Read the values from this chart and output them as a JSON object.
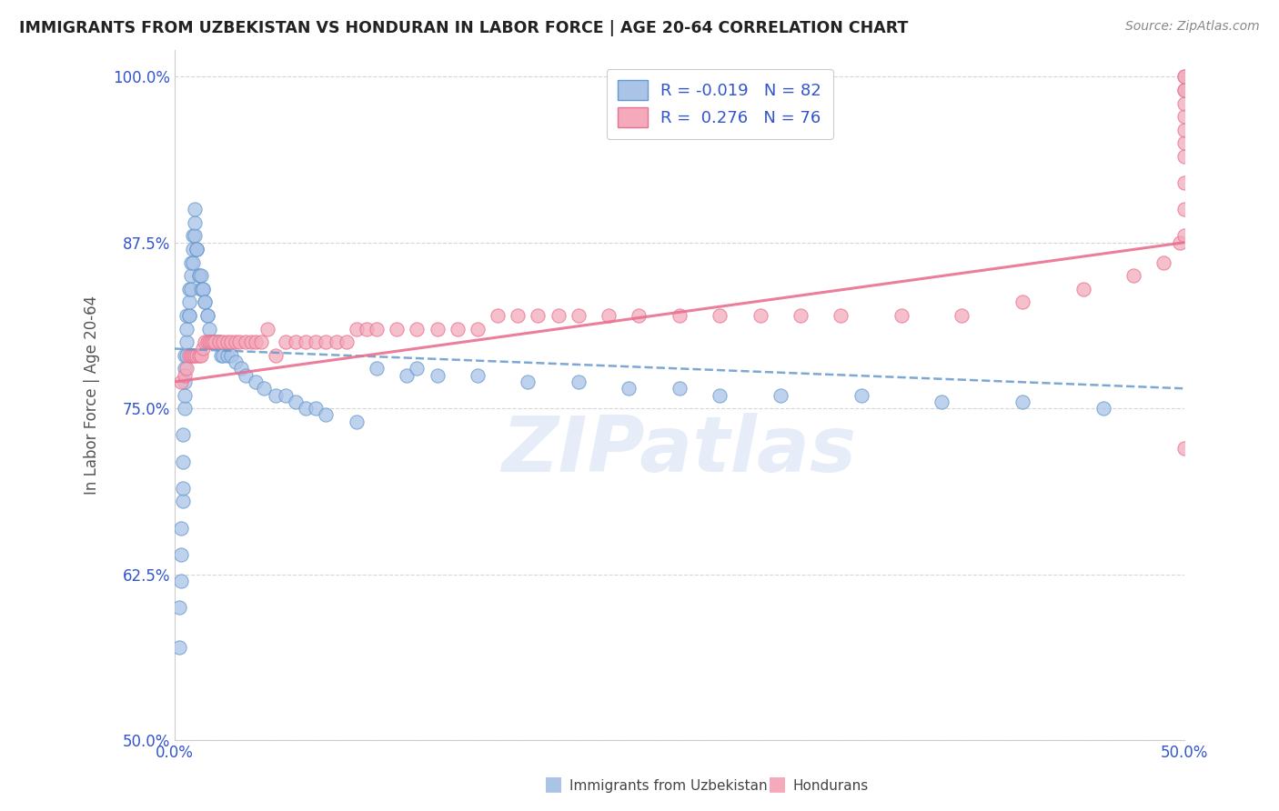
{
  "title": "IMMIGRANTS FROM UZBEKISTAN VS HONDURAN IN LABOR FORCE | AGE 20-64 CORRELATION CHART",
  "source": "Source: ZipAtlas.com",
  "ylabel": "In Labor Force | Age 20-64",
  "xmin": 0.0,
  "xmax": 0.5,
  "ymin": 0.5,
  "ymax": 1.02,
  "yticks": [
    0.5,
    0.625,
    0.75,
    0.875,
    1.0
  ],
  "ytick_labels": [
    "50.0%",
    "62.5%",
    "75.0%",
    "87.5%",
    "100.0%"
  ],
  "xticks": [
    0.0,
    0.1,
    0.2,
    0.3,
    0.4,
    0.5
  ],
  "color_uzbekistan_fill": "#aac4e8",
  "color_uzbekistan_edge": "#6699cc",
  "color_honduran_fill": "#f4aabb",
  "color_honduran_edge": "#e87090",
  "color_uzbekistan_line": "#6699cc",
  "color_honduran_line": "#e87090",
  "color_r_value": "#3355cc",
  "watermark": "ZIPatlas",
  "uzbekistan_trend_x": [
    0.0,
    0.5
  ],
  "uzbekistan_trend_y": [
    0.795,
    0.765
  ],
  "honduran_trend_x": [
    0.0,
    0.5
  ],
  "honduran_trend_y": [
    0.77,
    0.875
  ],
  "uzbekistan_x": [
    0.002,
    0.002,
    0.003,
    0.003,
    0.003,
    0.004,
    0.004,
    0.004,
    0.004,
    0.005,
    0.005,
    0.005,
    0.005,
    0.005,
    0.006,
    0.006,
    0.006,
    0.006,
    0.007,
    0.007,
    0.007,
    0.007,
    0.008,
    0.008,
    0.008,
    0.009,
    0.009,
    0.009,
    0.01,
    0.01,
    0.01,
    0.011,
    0.011,
    0.011,
    0.012,
    0.012,
    0.013,
    0.013,
    0.014,
    0.014,
    0.015,
    0.015,
    0.016,
    0.016,
    0.017,
    0.018,
    0.018,
    0.019,
    0.02,
    0.021,
    0.022,
    0.023,
    0.024,
    0.026,
    0.028,
    0.03,
    0.033,
    0.035,
    0.04,
    0.044,
    0.05,
    0.055,
    0.06,
    0.065,
    0.07,
    0.075,
    0.09,
    0.1,
    0.115,
    0.12,
    0.13,
    0.15,
    0.175,
    0.2,
    0.225,
    0.25,
    0.27,
    0.3,
    0.34,
    0.38,
    0.42,
    0.46
  ],
  "uzbekistan_y": [
    0.57,
    0.6,
    0.62,
    0.64,
    0.66,
    0.68,
    0.69,
    0.71,
    0.73,
    0.75,
    0.76,
    0.77,
    0.78,
    0.79,
    0.79,
    0.8,
    0.81,
    0.82,
    0.82,
    0.82,
    0.83,
    0.84,
    0.84,
    0.85,
    0.86,
    0.86,
    0.87,
    0.88,
    0.88,
    0.89,
    0.9,
    0.87,
    0.87,
    0.87,
    0.85,
    0.85,
    0.85,
    0.84,
    0.84,
    0.84,
    0.83,
    0.83,
    0.82,
    0.82,
    0.81,
    0.8,
    0.8,
    0.8,
    0.8,
    0.8,
    0.8,
    0.79,
    0.79,
    0.79,
    0.79,
    0.785,
    0.78,
    0.775,
    0.77,
    0.765,
    0.76,
    0.76,
    0.755,
    0.75,
    0.75,
    0.745,
    0.74,
    0.78,
    0.775,
    0.78,
    0.775,
    0.775,
    0.77,
    0.77,
    0.765,
    0.765,
    0.76,
    0.76,
    0.76,
    0.755,
    0.755,
    0.75
  ],
  "honduran_x": [
    0.003,
    0.005,
    0.006,
    0.007,
    0.008,
    0.009,
    0.01,
    0.011,
    0.012,
    0.013,
    0.014,
    0.015,
    0.016,
    0.017,
    0.018,
    0.019,
    0.02,
    0.022,
    0.024,
    0.026,
    0.028,
    0.03,
    0.032,
    0.035,
    0.038,
    0.04,
    0.043,
    0.046,
    0.05,
    0.055,
    0.06,
    0.065,
    0.07,
    0.075,
    0.08,
    0.085,
    0.09,
    0.095,
    0.1,
    0.11,
    0.12,
    0.13,
    0.14,
    0.15,
    0.16,
    0.17,
    0.18,
    0.19,
    0.2,
    0.215,
    0.23,
    0.25,
    0.27,
    0.29,
    0.31,
    0.33,
    0.36,
    0.39,
    0.42,
    0.45,
    0.475,
    0.49,
    0.498,
    0.5,
    0.5,
    0.5,
    0.5,
    0.5,
    0.5,
    0.5,
    0.5,
    0.5,
    0.5,
    0.5,
    0.5,
    0.5
  ],
  "honduran_y": [
    0.77,
    0.775,
    0.78,
    0.79,
    0.79,
    0.79,
    0.79,
    0.79,
    0.79,
    0.79,
    0.795,
    0.8,
    0.8,
    0.8,
    0.8,
    0.8,
    0.8,
    0.8,
    0.8,
    0.8,
    0.8,
    0.8,
    0.8,
    0.8,
    0.8,
    0.8,
    0.8,
    0.81,
    0.79,
    0.8,
    0.8,
    0.8,
    0.8,
    0.8,
    0.8,
    0.8,
    0.81,
    0.81,
    0.81,
    0.81,
    0.81,
    0.81,
    0.81,
    0.81,
    0.82,
    0.82,
    0.82,
    0.82,
    0.82,
    0.82,
    0.82,
    0.82,
    0.82,
    0.82,
    0.82,
    0.82,
    0.82,
    0.82,
    0.83,
    0.84,
    0.85,
    0.86,
    0.875,
    0.88,
    0.9,
    0.92,
    0.94,
    0.95,
    0.96,
    0.97,
    0.98,
    0.99,
    0.99,
    1.0,
    1.0,
    0.72
  ],
  "background_color": "#ffffff",
  "grid_color": "#cccccc",
  "title_color": "#222222",
  "axis_label_color": "#3355cc"
}
